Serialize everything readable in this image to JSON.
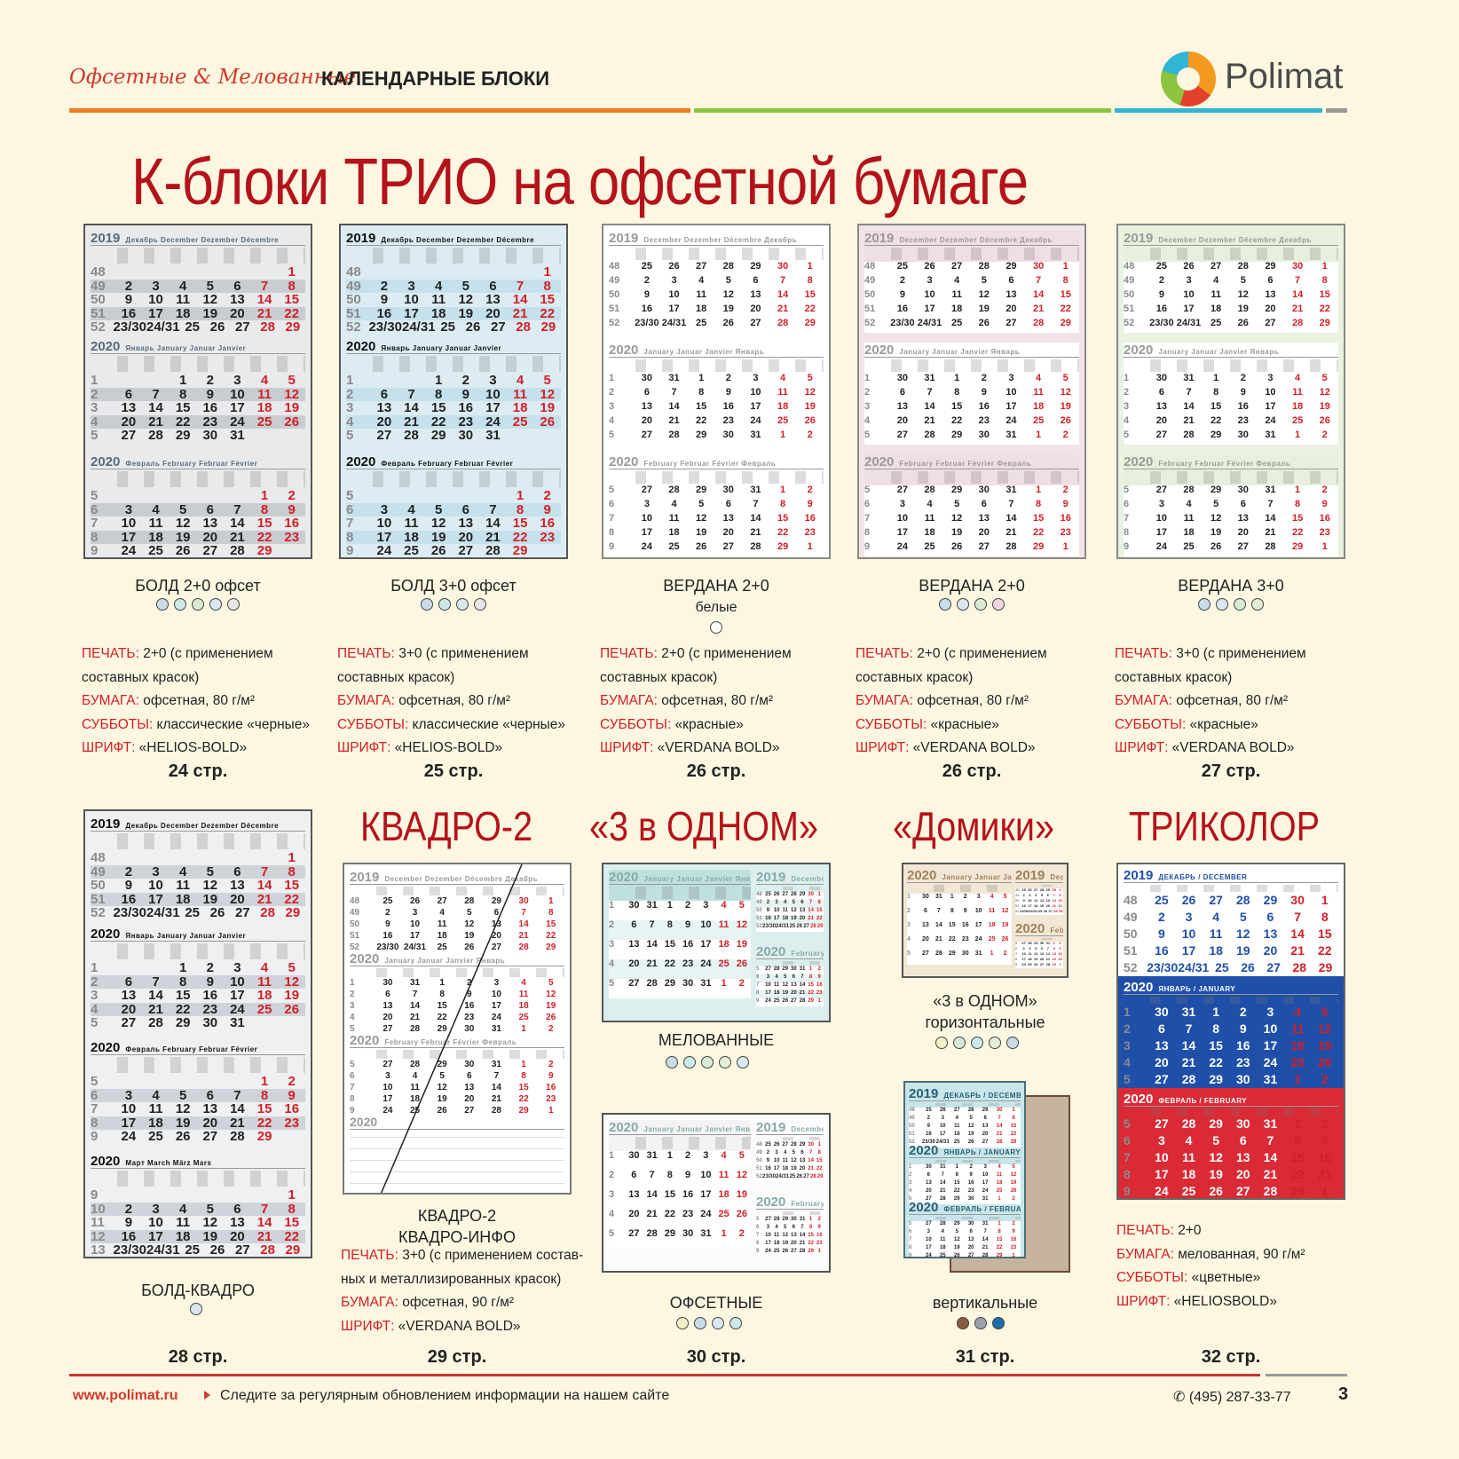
{
  "header": {
    "script_text": "Офсетные & Мелованные",
    "bold_text": "КАЛЕНДАРНЫЕ БЛОКИ",
    "brand": "Polimat",
    "rule_colors": [
      "#f07d1a",
      "#8cc43f",
      "#2fb5d5",
      "#999999"
    ]
  },
  "title": "К-блоки ТРИО на офсетной бумаге",
  "calendar_text": {
    "y2019": "2019",
    "y2020": "2020",
    "dec_label": "Декабрь December Dezember Décembre",
    "jan_label": "Январь January Januar Janvier",
    "feb_label": "Февраль February Februar Février",
    "mar_label": "Март March März Mars",
    "dec_label_rev": "December Dezember Décembre Декабрь",
    "jan_label_rev": "January Januar Janvier Январь",
    "feb_label_rev": "February Februar Février Февраль",
    "tri_dec": "ДЕКАБРЬ / DECEMBER",
    "tri_jan": "ЯНВАРЬ / JANUARY",
    "tri_feb": "ФЕВРАЛЬ / FEBRUARY"
  },
  "products_top": [
    {
      "name": "БОЛД 2+0 офсет",
      "sub": "",
      "dots": [
        "#c8dde8",
        "#cde8ea",
        "#d6ead6",
        "#d9e7f2",
        "#e6e6e6"
      ],
      "spec": [
        [
          "ПЕЧАТЬ:",
          " 2+0 (с применением"
        ],
        [
          "",
          "составных красок)"
        ],
        [
          "БУМАГА:",
          " офсетная, 80 г/м²"
        ],
        [
          "СУББОТЫ:",
          " классические «черные»"
        ],
        [
          "ШРИФТ:",
          " «HELIOS-BOLD»"
        ]
      ],
      "page": "24 стр."
    },
    {
      "name": "БОЛД 3+0 офсет",
      "sub": "",
      "dots": [
        "#c8dde8",
        "#cde8ea",
        "#d9e7f2",
        "#e6e6e6"
      ],
      "spec": [
        [
          "ПЕЧАТЬ:",
          " 3+0 (с применением"
        ],
        [
          "",
          "составных красок)"
        ],
        [
          "БУМАГА:",
          " офсетная, 80 г/м²"
        ],
        [
          "СУББОТЫ:",
          " классические «черные»"
        ],
        [
          "ШРИФТ:",
          " «HELIOS-BOLD»"
        ]
      ],
      "page": "25 стр."
    },
    {
      "name": "ВЕРДАНА 2+0",
      "sub": "белые",
      "dots": [
        "#ffffff"
      ],
      "spec": [
        [
          "ПЕЧАТЬ:",
          " 2+0 (с применением"
        ],
        [
          "",
          "составных красок)"
        ],
        [
          "БУМАГА:",
          " офсетная, 80 г/м²"
        ],
        [
          "СУББОТЫ:",
          " «красные»"
        ],
        [
          "ШРИФТ:",
          "  «VERDANA BOLD»"
        ]
      ],
      "page": "26 стр."
    },
    {
      "name": "ВЕРДАНА 2+0",
      "sub": "",
      "dots": [
        "#c8dde8",
        "#d9e7f2",
        "#d6ead6",
        "#eed7de"
      ],
      "spec": [
        [
          "ПЕЧАТЬ:",
          " 2+0 (с применением"
        ],
        [
          "",
          "составных красок)"
        ],
        [
          "БУМАГА:",
          " офсетная, 80 г/м²"
        ],
        [
          "СУББОТЫ:",
          " «красные»"
        ],
        [
          "ШРИФТ:",
          "  «VERDANA BOLD»"
        ]
      ],
      "page": "26 стр."
    },
    {
      "name": "ВЕРДАНА 3+0",
      "sub": "",
      "dots": [
        "#c8dde8",
        "#d9e7f2",
        "#d6ead6",
        "#e2efd6"
      ],
      "spec": [
        [
          "ПЕЧАТЬ:",
          " 3+0 (с применением"
        ],
        [
          "",
          "составных красок)"
        ],
        [
          "БУМАГА:",
          " офсетная, 80 г/м²"
        ],
        [
          "СУББОТЫ:",
          " «красные»"
        ],
        [
          "ШРИФТ:",
          "  «VERDANA BOLD»"
        ]
      ],
      "page": "27 стр."
    }
  ],
  "bottom": {
    "bold_kvadro": {
      "name": "БОЛД-КВАДРО",
      "dots": [
        "#d9e7f2"
      ],
      "page": "28 стр."
    },
    "kvadro": {
      "title": "КВАДРО-2",
      "name1": "КВАДРО-2",
      "name2": "КВАДРО-ИНФО",
      "spec": [
        [
          "ПЕЧАТЬ:",
          " 3+0 (с применением состав-"
        ],
        [
          "",
          "ных и металлизированных красок)"
        ],
        [
          "БУМАГА:",
          " офсетная, 90 г/м²"
        ],
        [
          "ШРИФТ:",
          "  «VERDANA BOLD»"
        ]
      ],
      "page": "29 стр."
    },
    "three": {
      "title": "«3 в ОДНОМ»",
      "coated": "МЕЛОВАННЫЕ",
      "coated_dots": [
        "#c8dde8",
        "#cde8ea",
        "#d6ead6",
        "#e2efd6",
        "#d9e7f2"
      ],
      "offset": "ОФСЕТНЫЕ",
      "offset_dots": [
        "#f3f0c8",
        "#c8dde8",
        "#d9e7f2",
        "#cde8ea"
      ],
      "page": "30 стр."
    },
    "houses": {
      "title": "«Домики»",
      "h1": "«3 в ОДНОМ»",
      "h2": "горизонтальные",
      "h_dots": [
        "#f3f0c8",
        "#d6ead6",
        "#cde8ea",
        "#e2efd6",
        "#c8dde8"
      ],
      "vertical": "вертикальные",
      "v_dots": [
        "#8b5a44",
        "#9aa3ad",
        "#1e6ea8"
      ],
      "page": "31 стр."
    },
    "tricolor": {
      "title": "ТРИКОЛОР",
      "spec": [
        [
          "ПЕЧАТЬ:",
          " 2+0"
        ],
        [
          "БУМАГА:",
          " мелованная, 90 г/м²"
        ],
        [
          "СУББОТЫ:",
          " «цветные»"
        ],
        [
          "ШРИФТ:",
          "  «HELIOSBOLD»"
        ]
      ],
      "page": "32 стр."
    }
  },
  "footer": {
    "url": "www.polimat.ru",
    "note": "Следите за регулярным обновлением информации на нашем сайте",
    "phone": "✆ (495) 287-33-77",
    "page_num": "3"
  },
  "months": {
    "dec": [
      [
        "48",
        "",
        "",
        "",
        "",
        "",
        "",
        "1"
      ],
      [
        "49",
        "2",
        "3",
        "4",
        "5",
        "6",
        "7",
        "8"
      ],
      [
        "50",
        "9",
        "10",
        "11",
        "12",
        "13",
        "14",
        "15"
      ],
      [
        "51",
        "16",
        "17",
        "18",
        "19",
        "20",
        "21",
        "22"
      ],
      [
        "52",
        "23/30",
        "24/31",
        "25",
        "26",
        "27",
        "28",
        "29"
      ]
    ],
    "jan": [
      [
        "1",
        "",
        "",
        "1",
        "2",
        "3",
        "4",
        "5"
      ],
      [
        "2",
        "6",
        "7",
        "8",
        "9",
        "10",
        "11",
        "12"
      ],
      [
        "3",
        "13",
        "14",
        "15",
        "16",
        "17",
        "18",
        "19"
      ],
      [
        "4",
        "20",
        "21",
        "22",
        "23",
        "24",
        "25",
        "26"
      ],
      [
        "5",
        "27",
        "28",
        "29",
        "30",
        "31",
        "",
        ""
      ]
    ],
    "feb": [
      [
        "5",
        "",
        "",
        "",
        "",
        "",
        "1",
        "2"
      ],
      [
        "6",
        "3",
        "4",
        "5",
        "6",
        "7",
        "8",
        "9"
      ],
      [
        "7",
        "10",
        "11",
        "12",
        "13",
        "14",
        "15",
        "16"
      ],
      [
        "8",
        "17",
        "18",
        "19",
        "20",
        "21",
        "22",
        "23"
      ],
      [
        "9",
        "24",
        "25",
        "26",
        "27",
        "28",
        "29",
        ""
      ]
    ],
    "mar": [
      [
        "9",
        "",
        "",
        "",
        "",
        "",
        "",
        "1"
      ],
      [
        "10",
        "2",
        "3",
        "4",
        "5",
        "6",
        "7",
        "8"
      ],
      [
        "11",
        "9",
        "10",
        "11",
        "12",
        "13",
        "14",
        "15"
      ],
      [
        "12",
        "16",
        "17",
        "18",
        "19",
        "20",
        "21",
        "22"
      ],
      [
        "13",
        "23/30",
        "24/31",
        "25",
        "26",
        "27",
        "28",
        "29"
      ]
    ],
    "dec_v": [
      [
        "48",
        "25",
        "26",
        "27",
        "28",
        "29",
        "30",
        "1"
      ],
      [
        "49",
        "2",
        "3",
        "4",
        "5",
        "6",
        "7",
        "8"
      ],
      [
        "50",
        "9",
        "10",
        "11",
        "12",
        "13",
        "14",
        "15"
      ],
      [
        "51",
        "16",
        "17",
        "18",
        "19",
        "20",
        "21",
        "22"
      ],
      [
        "52",
        "23/30",
        "24/31",
        "25",
        "26",
        "27",
        "28",
        "29"
      ]
    ],
    "jan_v": [
      [
        "1",
        "30",
        "31",
        "1",
        "2",
        "3",
        "4",
        "5"
      ],
      [
        "2",
        "6",
        "7",
        "8",
        "9",
        "10",
        "11",
        "12"
      ],
      [
        "3",
        "13",
        "14",
        "15",
        "16",
        "17",
        "18",
        "19"
      ],
      [
        "4",
        "20",
        "21",
        "22",
        "23",
        "24",
        "25",
        "26"
      ],
      [
        "5",
        "27",
        "28",
        "29",
        "30",
        "31",
        "1",
        "2"
      ]
    ],
    "feb_v": [
      [
        "5",
        "27",
        "28",
        "29",
        "30",
        "31",
        "1",
        "2"
      ],
      [
        "6",
        "3",
        "4",
        "5",
        "6",
        "7",
        "8",
        "9"
      ],
      [
        "7",
        "10",
        "11",
        "12",
        "13",
        "14",
        "15",
        "16"
      ],
      [
        "8",
        "17",
        "18",
        "19",
        "20",
        "21",
        "22",
        "23"
      ],
      [
        "9",
        "24",
        "25",
        "26",
        "27",
        "28",
        "29",
        "1"
      ]
    ]
  }
}
